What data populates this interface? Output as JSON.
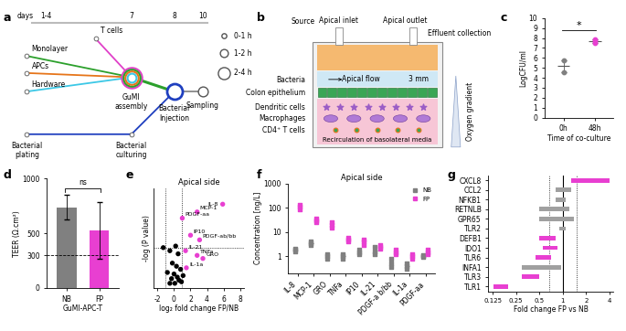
{
  "panel_labels": [
    "a",
    "b",
    "c",
    "d",
    "e",
    "f",
    "g"
  ],
  "diagram_a": {
    "days_label": "days",
    "days": [
      "1-4",
      "7",
      "8",
      "10"
    ],
    "tracks": [
      {
        "label": "T cells",
        "color": "#e040c8"
      },
      {
        "label": "Monolayer",
        "color": "#2ca02c"
      },
      {
        "label": "APCs",
        "color": "#e6751a"
      },
      {
        "label": "Hardware",
        "color": "#3cc8e6"
      }
    ],
    "assembly": "GuMI\nassembly",
    "injection": "Bacterial\nInjection",
    "sampling": "Sampling",
    "plating": "Bacterial\nplating",
    "culturing": "Bacterial\nculturing",
    "bacteria_color": "#1f3fbf",
    "workload": [
      "0-1 h",
      "1-2 h",
      "2-4 h"
    ]
  },
  "diagram_b": {
    "source": "Source",
    "inlet": "Apical inlet",
    "outlet": "Apical outlet",
    "effluent": "Effluent collection",
    "flow": "Apical flow",
    "height": "3 mm",
    "bacteria": "Bacteria",
    "epithelium": "Colon epithelium",
    "dendritic": "Dendritic cells",
    "macrophages": "Macrophages",
    "tcells": "CD4⁺ T cells",
    "oxygen": "Oxygen gradient",
    "recirculation": "Recirculation of basolateral media"
  },
  "chart_data": [
    {
      "type": "scatter",
      "x_label": "Time of co-culture",
      "y_label": "LogCFU/ml",
      "categories": [
        "0h",
        "48h"
      ],
      "points": [
        [
          4.6,
          5.8
        ],
        [
          7.5,
          7.7,
          7.9
        ]
      ],
      "means": [
        5.2,
        7.7
      ],
      "errors": [
        0.6,
        0.2
      ],
      "colors": [
        "#808080",
        "#e83fd1"
      ],
      "ylim": [
        0,
        10
      ],
      "yticks": [
        0,
        1,
        2,
        3,
        4,
        5,
        6,
        7,
        8,
        9,
        10
      ],
      "annotations": [
        "*"
      ]
    },
    {
      "type": "bar",
      "x_label": "GuMI-APC-T",
      "y_label": "TEER (Ω.cm²)",
      "categories": [
        "NB",
        "FP"
      ],
      "values": [
        740,
        530
      ],
      "errors": [
        110,
        260
      ],
      "colors": [
        "#808080",
        "#e83fd1"
      ],
      "ylim": [
        0,
        1000
      ],
      "yticks": [
        0,
        300,
        500,
        1000
      ],
      "threshold": 300,
      "annotations": [
        "ns"
      ]
    },
    {
      "type": "scatter",
      "title": "Apical side",
      "x_label": "log₂ fold change FP/NB",
      "y_label": "-log (P value)",
      "x": [
        5.9,
        2.8,
        1.0,
        2.0,
        3.1,
        1.4,
        2.8,
        3.5,
        1.5,
        -1.3,
        -0.5,
        0.2,
        0.5,
        -0.2,
        0.3,
        0.8,
        -0.8,
        0.0,
        0.4,
        -0.3,
        0.6,
        0.1,
        -0.5,
        0.9,
        1.1
      ],
      "y": [
        2.7,
        2.45,
        2.25,
        1.7,
        1.55,
        1.2,
        1.05,
        0.95,
        0.65,
        1.3,
        1.2,
        1.35,
        1.1,
        0.8,
        0.7,
        0.6,
        0.5,
        0.45,
        0.35,
        0.3,
        0.25,
        0.15,
        0.15,
        0.2,
        0.4
      ],
      "point_labels": [
        "IL-8",
        "MCP-1",
        "PDGF-aa",
        "IP10",
        "PDGF-ab/bb",
        "IL-21",
        "TNFa",
        "GRO",
        "IL-1a",
        null,
        null,
        null,
        null,
        null,
        null,
        null,
        null,
        null,
        null,
        null,
        null,
        null,
        null,
        null,
        null
      ],
      "colors": [
        "#e83fd1",
        "#e83fd1",
        "#e83fd1",
        "#e83fd1",
        "#e83fd1",
        "#e83fd1",
        "#e83fd1",
        "#e83fd1",
        "#e83fd1",
        "#000000",
        "#000000",
        "#000000",
        "#000000",
        "#000000",
        "#000000",
        "#000000",
        "#000000",
        "#000000",
        "#000000",
        "#000000",
        "#000000",
        "#000000",
        "#000000",
        "#000000",
        "#000000"
      ],
      "thresholds": {
        "x": [
          -1,
          1
        ],
        "y": 1.3
      },
      "xlim": [
        -2.5,
        8.5
      ],
      "xticks": [
        -2,
        0,
        2,
        4,
        6,
        8
      ],
      "ylim": [
        0,
        3.2
      ],
      "yticks": [],
      "tick_labels": "x"
    },
    {
      "type": "strip",
      "title": "Apical side",
      "y_label": "Concentration [ng/L]",
      "log": "y",
      "categories": [
        "IL-8",
        "MCP-1",
        "GRO",
        "TNFa",
        "IP10",
        "IL-21",
        "PDGF-a b/bb",
        "IL-1a",
        "PDGF-aa"
      ],
      "series": [
        {
          "name": "NB",
          "color": "#808080",
          "marker": "square",
          "points": [
            [
              1.6,
              1.8,
              2.0
            ],
            [
              3,
              3.5,
              4
            ],
            [
              0.8,
              1,
              1.2
            ],
            [
              0.8,
              1,
              1.2
            ],
            [
              1.2,
              1.5,
              1.8
            ],
            [
              1.2,
              1.6,
              2.5
            ],
            [
              0.35,
              0.5,
              0.8
            ],
            [
              0.3,
              0.4,
              0.5
            ],
            [
              0.9,
              1,
              1.1
            ]
          ],
          "means": [
            1.8,
            3.5,
            1,
            1,
            1.5,
            1.7,
            0.55,
            0.4,
            1
          ]
        },
        {
          "name": "FP",
          "color": "#e83fd1",
          "marker": "square",
          "points": [
            [
              90,
              110,
              130
            ],
            [
              25,
              30,
              35
            ],
            [
              15,
              20,
              25
            ],
            [
              4,
              5,
              6
            ],
            [
              3,
              4,
              5
            ],
            [
              2,
              2.5,
              3
            ],
            [
              1.2,
              1.5,
              1.8
            ],
            [
              0.8,
              1,
              1.2
            ],
            [
              1.2,
              1.5,
              1.8
            ]
          ],
          "means": [
            110,
            30,
            20,
            5,
            4,
            2.5,
            1.5,
            1,
            1.5
          ]
        }
      ],
      "ylim": [
        0.2,
        1000
      ],
      "yticks": [
        1,
        10,
        100,
        1000
      ],
      "legend": "upper right"
    },
    {
      "type": "range_bar",
      "orientation": "horizontal",
      "x_label": "Fold change FP vs NB",
      "log": "x",
      "categories": [
        "CXCL8",
        "CCL2",
        "NFKB1",
        "RETNLB",
        "GPR65",
        "TLR2",
        "DEFB1",
        "IDO1",
        "TLR6",
        "INFA1",
        "TLR3",
        "TLR1"
      ],
      "low": [
        1.3,
        0.8,
        0.8,
        0.5,
        0.5,
        0.9,
        0.5,
        0.55,
        0.45,
        0.3,
        0.3,
        0.13
      ],
      "high": [
        4,
        1.3,
        1.1,
        1.2,
        1.4,
        1.1,
        0.8,
        0.85,
        0.7,
        0.95,
        0.5,
        0.2
      ],
      "colors": [
        "#e83fd1",
        "#a0a0a0",
        "#a0a0a0",
        "#a0a0a0",
        "#a0a0a0",
        "#a0a0a0",
        "#e83fd1",
        "#e83fd1",
        "#e83fd1",
        "#a0a0a0",
        "#e83fd1",
        "#e83fd1"
      ],
      "reference": 1,
      "thresholds": [
        0.67,
        1.5
      ],
      "xlim": [
        0.11,
        4.5
      ],
      "xticks": [
        0.125,
        0.25,
        0.5,
        1,
        2,
        4
      ]
    }
  ]
}
